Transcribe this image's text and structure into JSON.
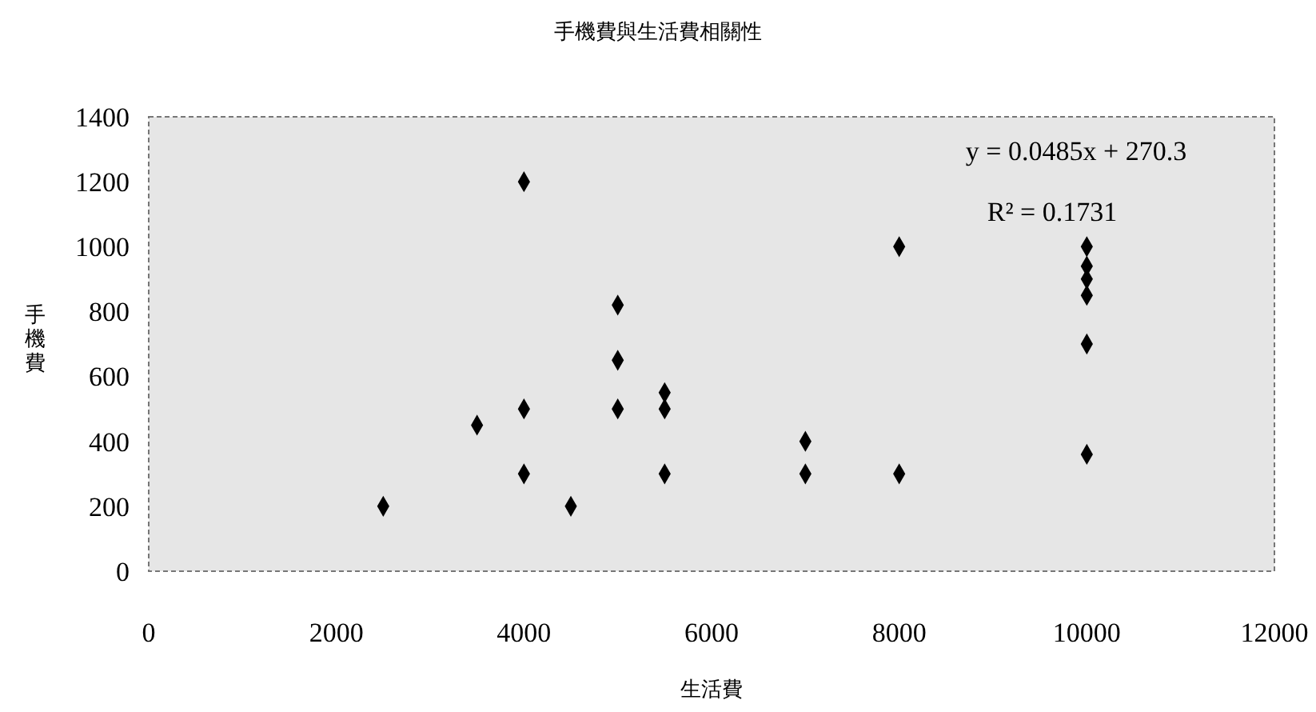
{
  "chart_data": {
    "type": "scatter",
    "title": "手機費與生活費相關性",
    "xlabel": "生活費",
    "ylabel": "手機費",
    "x": [
      2500,
      3500,
      4000,
      4000,
      4000,
      4500,
      5000,
      5000,
      5000,
      5500,
      5500,
      5500,
      7000,
      7000,
      8000,
      8000,
      10000,
      10000,
      10000,
      10000,
      10000,
      10000
    ],
    "series": [
      {
        "color": "#000000",
        "values": [
          200,
          450,
          1200,
          500,
          300,
          200,
          820,
          650,
          500,
          550,
          500,
          300,
          400,
          300,
          1000,
          300,
          1000,
          940,
          900,
          850,
          700,
          360
        ]
      }
    ],
    "xlim": [
      0,
      12000
    ],
    "xticks": [
      0,
      2000,
      4000,
      6000,
      8000,
      10000,
      12000
    ],
    "ylim": [
      0,
      1400
    ],
    "yticks": [
      0,
      200,
      400,
      600,
      800,
      1000,
      1200,
      1400
    ],
    "annotations": [
      "y = 0.0485x + 270.3",
      "R² = 0.1731"
    ],
    "marker": "diamond",
    "grid": false
  }
}
